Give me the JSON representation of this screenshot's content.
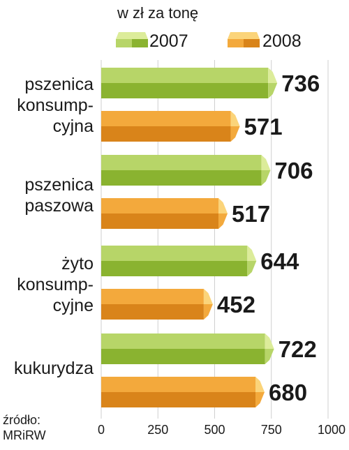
{
  "colors": {
    "series_2007_face": "#b7d568",
    "series_2007_dark": "#8ab330",
    "series_2007_light": "#dcec9a",
    "series_2008_face": "#f3a93c",
    "series_2008_dark": "#d9841a",
    "series_2008_light": "#fbd47a",
    "grid": "#cfcfcf"
  },
  "source": {
    "line1": "źródło:",
    "line2": "MRiRW"
  },
  "chart_data": {
    "type": "bar",
    "orientation": "horizontal",
    "subtitle": "w zł za tonę",
    "categories": [
      [
        "pszenica",
        "konsump-",
        "cyjna"
      ],
      [
        "pszenica",
        "paszowa"
      ],
      [
        "żyto",
        "konsump-",
        "cyjne"
      ],
      [
        "kukurydza"
      ]
    ],
    "series": [
      {
        "name": "2007",
        "values": [
          736,
          706,
          644,
          722
        ]
      },
      {
        "name": "2008",
        "values": [
          571,
          517,
          452,
          680
        ]
      }
    ],
    "xlim": [
      0,
      1000
    ],
    "xticks": [
      0,
      250,
      500,
      750,
      1000
    ],
    "grid": true,
    "legend": "top"
  }
}
